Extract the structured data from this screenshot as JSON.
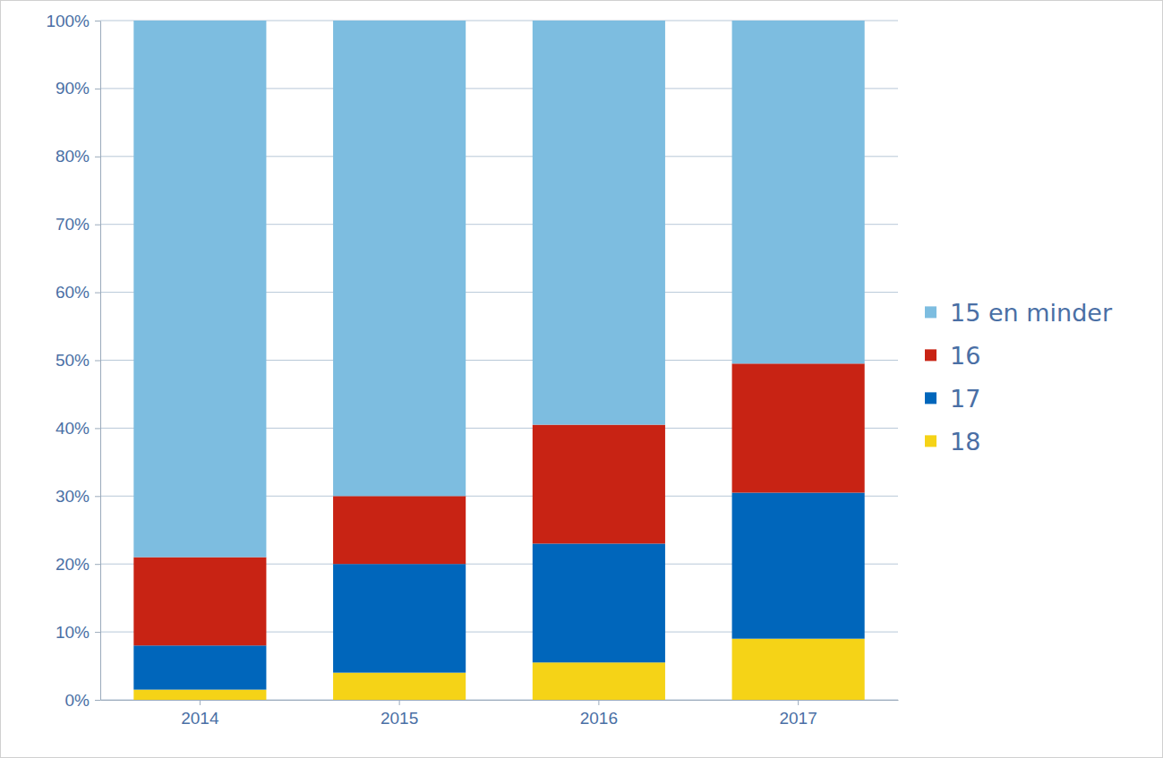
{
  "chart_data": {
    "type": "bar",
    "stacked": true,
    "grid": true,
    "legend": "right",
    "categories": [
      "2014",
      "2015",
      "2016",
      "2017"
    ],
    "series": [
      {
        "name": "15 en minder",
        "color": "#7dbde0",
        "values": [
          79,
          70,
          59.5,
          50.5
        ]
      },
      {
        "name": "16",
        "color": "#c82314",
        "values": [
          13,
          10,
          17.5,
          19
        ]
      },
      {
        "name": "17",
        "color": "#0066bb",
        "values": [
          6.5,
          16,
          17.5,
          21.5
        ]
      },
      {
        "name": "18",
        "color": "#f5d317",
        "values": [
          1.5,
          4,
          5.5,
          9
        ]
      }
    ],
    "ylim": [
      0,
      100
    ],
    "yticks": [
      {
        "value": 0,
        "label": "0%"
      },
      {
        "value": 10,
        "label": "10%"
      },
      {
        "value": 20,
        "label": "20%"
      },
      {
        "value": 30,
        "label": "30%"
      },
      {
        "value": 40,
        "label": "40%"
      },
      {
        "value": 50,
        "label": "50%"
      },
      {
        "value": 60,
        "label": "60%"
      },
      {
        "value": 70,
        "label": "70%"
      },
      {
        "value": 80,
        "label": "80%"
      },
      {
        "value": 90,
        "label": "90%"
      },
      {
        "value": 100,
        "label": "100%"
      }
    ]
  }
}
